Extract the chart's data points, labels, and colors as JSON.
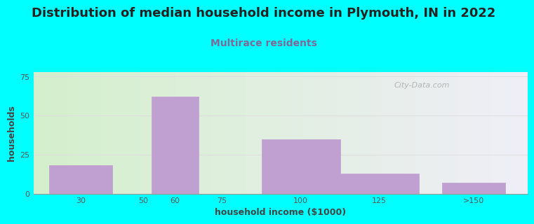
{
  "title": "Distribution of median household income in Plymouth, IN in 2022",
  "subtitle": "Multirace residents",
  "xlabel": "household income ($1000)",
  "ylabel": "households",
  "background_outer": "#00FFFF",
  "background_inner_left": "#d4f0cc",
  "background_inner_right": "#f0eef8",
  "bar_color": "#c0a0d0",
  "bar_color_edge": "#c0a0d0",
  "values": [
    18,
    0,
    62,
    0,
    35,
    13,
    7
  ],
  "bar_positions": [
    30,
    50,
    60,
    75,
    100,
    125,
    155
  ],
  "bar_widths": [
    20,
    10,
    15,
    15,
    25,
    25,
    20
  ],
  "xlim": [
    15,
    172
  ],
  "ylim": [
    0,
    78
  ],
  "yticks": [
    0,
    25,
    50,
    75
  ],
  "xtick_labels": [
    "30",
    "50",
    "60",
    "75",
    "100",
    "125",
    ">150"
  ],
  "xtick_positions": [
    30,
    50,
    60,
    75,
    100,
    125,
    155
  ],
  "title_fontsize": 13,
  "subtitle_fontsize": 10,
  "axis_label_fontsize": 9,
  "tick_fontsize": 8,
  "title_color": "#222222",
  "subtitle_color": "#806898",
  "axis_label_color": "#444444",
  "watermark_text": "City-Data.com",
  "watermark_color": "#aaaaaa",
  "grid_color": "#dddddd"
}
